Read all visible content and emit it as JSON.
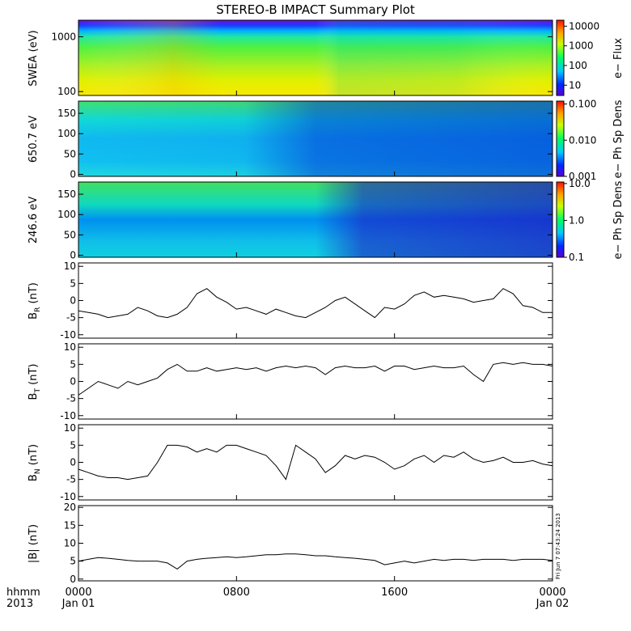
{
  "title": "STEREO-B IMPACT Summary Plot",
  "side_stamp": "Fri Jun  7 07:43:24 2013",
  "time_axis": {
    "row1_label": "hhmm",
    "row2_label": "2013",
    "ticks": [
      {
        "hour": 0,
        "label": "0000",
        "date": "Jan 01"
      },
      {
        "hour": 8,
        "label": "0800",
        "date": ""
      },
      {
        "hour": 16,
        "label": "1600",
        "date": ""
      },
      {
        "hour": 24,
        "label": "0000",
        "date": "Jan 02"
      }
    ]
  },
  "chart_data": [
    {
      "type": "heatmap",
      "id": "swea",
      "ylabel": "SWEA (eV)",
      "yscale": "log",
      "ylim": [
        85,
        2000
      ],
      "yticks": [
        {
          "v": 100,
          "label": "100"
        },
        {
          "v": 1000,
          "label": "1000"
        }
      ],
      "colorbar": {
        "label": "e− Flux",
        "scale": "log",
        "range": [
          3,
          20000
        ],
        "ticks": [
          {
            "v": 10,
            "label": "10"
          },
          {
            "v": 100,
            "label": "100"
          },
          {
            "v": 1000,
            "label": "1000"
          },
          {
            "v": 10000,
            "label": "10000"
          }
        ]
      }
    },
    {
      "type": "heatmap",
      "id": "pad650",
      "ylabel": "650.7 eV",
      "ylim": [
        -5,
        180
      ],
      "yticks": [
        {
          "v": 0,
          "label": "0"
        },
        {
          "v": 50,
          "label": "50"
        },
        {
          "v": 100,
          "label": "100"
        },
        {
          "v": 150,
          "label": "150"
        }
      ],
      "colorbar": {
        "label": "e− Ph Sp Dens",
        "scale": "log",
        "range": [
          0.001,
          0.12
        ],
        "ticks": [
          {
            "v": 0.001,
            "label": "0.001"
          },
          {
            "v": 0.01,
            "label": "0.010"
          },
          {
            "v": 0.1,
            "label": "0.100"
          }
        ]
      }
    },
    {
      "type": "heatmap",
      "id": "pad246",
      "ylabel": "246.6 eV",
      "ylim": [
        -5,
        180
      ],
      "yticks": [
        {
          "v": 0,
          "label": "0"
        },
        {
          "v": 50,
          "label": "50"
        },
        {
          "v": 100,
          "label": "100"
        },
        {
          "v": 150,
          "label": "150"
        }
      ],
      "colorbar": {
        "label": "e− Ph Sp Dens",
        "scale": "log",
        "range": [
          0.1,
          11
        ],
        "ticks": [
          {
            "v": 0.1,
            "label": "0.1"
          },
          {
            "v": 1,
            "label": "1.0"
          },
          {
            "v": 10,
            "label": "10.0"
          }
        ]
      }
    },
    {
      "type": "line",
      "id": "br",
      "ylabel_main": "B",
      "ylabel_sub": "R",
      "ylabel_unit": " (nT)",
      "ylim": [
        -11,
        11
      ],
      "yticks": [
        {
          "v": -10,
          "label": "-10"
        },
        {
          "v": -5,
          "label": "-5"
        },
        {
          "v": 0,
          "label": "0"
        },
        {
          "v": 5,
          "label": "5"
        },
        {
          "v": 10,
          "label": "10"
        }
      ],
      "x": [
        0,
        0.5,
        1,
        1.5,
        2,
        2.5,
        3,
        3.5,
        4,
        4.5,
        5,
        5.5,
        6,
        6.5,
        7,
        7.5,
        8,
        8.5,
        9,
        9.5,
        10,
        10.5,
        11,
        11.5,
        12,
        12.5,
        13,
        13.5,
        14,
        14.5,
        15,
        15.5,
        16,
        16.5,
        17,
        17.5,
        18,
        18.5,
        19,
        19.5,
        20,
        20.5,
        21,
        21.5,
        22,
        22.5,
        23,
        23.5,
        24
      ],
      "y": [
        -3,
        -3.5,
        -4,
        -5,
        -4.5,
        -4,
        -2,
        -3,
        -4.5,
        -5,
        -4,
        -2,
        2,
        3.5,
        1,
        -0.5,
        -2.5,
        -2,
        -3,
        -4,
        -2.5,
        -3.5,
        -4.5,
        -5,
        -3.5,
        -2,
        0,
        1,
        -1,
        -3,
        -5,
        -2,
        -2.5,
        -1,
        1.5,
        2.5,
        1,
        1.5,
        1,
        0.5,
        -0.5,
        0,
        0.5,
        3.5,
        2,
        -1.5,
        -2,
        -3.5,
        -3.5
      ]
    },
    {
      "type": "line",
      "id": "bt",
      "ylabel_main": "B",
      "ylabel_sub": "T",
      "ylabel_unit": " (nT)",
      "ylim": [
        -11,
        11
      ],
      "yticks": [
        {
          "v": -10,
          "label": "-10"
        },
        {
          "v": -5,
          "label": "-5"
        },
        {
          "v": 0,
          "label": "0"
        },
        {
          "v": 5,
          "label": "5"
        },
        {
          "v": 10,
          "label": "10"
        }
      ],
      "x": [
        0,
        0.5,
        1,
        1.5,
        2,
        2.5,
        3,
        3.5,
        4,
        4.5,
        5,
        5.5,
        6,
        6.5,
        7,
        7.5,
        8,
        8.5,
        9,
        9.5,
        10,
        10.5,
        11,
        11.5,
        12,
        12.5,
        13,
        13.5,
        14,
        14.5,
        15,
        15.5,
        16,
        16.5,
        17,
        17.5,
        18,
        18.5,
        19,
        19.5,
        20,
        20.5,
        21,
        21.5,
        22,
        22.5,
        23,
        23.5,
        24
      ],
      "y": [
        -4,
        -2,
        0,
        -1,
        -2,
        0,
        -1,
        0,
        1,
        3.5,
        5,
        3,
        3,
        4,
        3,
        3.5,
        4,
        3.5,
        4,
        3,
        4,
        4.5,
        4,
        4.5,
        4,
        2,
        4,
        4.5,
        4,
        4,
        4.5,
        3,
        4.5,
        4.5,
        3.5,
        4,
        4.5,
        4,
        4,
        4.5,
        2,
        0,
        5,
        5.5,
        5,
        5.5,
        5,
        5,
        4.5
      ]
    },
    {
      "type": "line",
      "id": "bn",
      "ylabel_main": "B",
      "ylabel_sub": "N",
      "ylabel_unit": " (nT)",
      "ylim": [
        -11,
        11
      ],
      "yticks": [
        {
          "v": -10,
          "label": "-10"
        },
        {
          "v": -5,
          "label": "-5"
        },
        {
          "v": 0,
          "label": "0"
        },
        {
          "v": 5,
          "label": "5"
        },
        {
          "v": 10,
          "label": "10"
        }
      ],
      "x": [
        0,
        0.5,
        1,
        1.5,
        2,
        2.5,
        3,
        3.5,
        4,
        4.5,
        5,
        5.5,
        6,
        6.5,
        7,
        7.5,
        8,
        8.5,
        9,
        9.5,
        10,
        10.5,
        11,
        11.5,
        12,
        12.5,
        13,
        13.5,
        14,
        14.5,
        15,
        15.5,
        16,
        16.5,
        17,
        17.5,
        18,
        18.5,
        19,
        19.5,
        20,
        20.5,
        21,
        21.5,
        22,
        22.5,
        23,
        23.5,
        24
      ],
      "y": [
        -2,
        -3,
        -4,
        -4.5,
        -4.5,
        -5,
        -4.5,
        -4,
        0,
        5,
        5,
        4.5,
        3,
        4,
        3,
        5,
        5,
        4,
        3,
        2,
        -1,
        -5,
        5,
        3,
        1,
        -3,
        -1,
        2,
        1,
        2,
        1.5,
        0,
        -2,
        -1,
        1,
        2,
        0,
        2,
        1.5,
        3,
        1,
        0,
        0.5,
        1.5,
        0,
        0,
        0.5,
        -0.5,
        -1
      ]
    },
    {
      "type": "line",
      "id": "bmag",
      "ylabel_main": "|B| (nT)",
      "ylim": [
        -0.5,
        20.5
      ],
      "yticks": [
        {
          "v": 0,
          "label": "0"
        },
        {
          "v": 5,
          "label": "5"
        },
        {
          "v": 10,
          "label": "10"
        },
        {
          "v": 15,
          "label": "15"
        },
        {
          "v": 20,
          "label": "20"
        }
      ],
      "x": [
        0,
        0.5,
        1,
        1.5,
        2,
        2.5,
        3,
        3.5,
        4,
        4.5,
        5,
        5.5,
        6,
        6.5,
        7,
        7.5,
        8,
        8.5,
        9,
        9.5,
        10,
        10.5,
        11,
        11.5,
        12,
        12.5,
        13,
        13.5,
        14,
        14.5,
        15,
        15.5,
        16,
        16.5,
        17,
        17.5,
        18,
        18.5,
        19,
        19.5,
        20,
        20.5,
        21,
        21.5,
        22,
        22.5,
        23,
        23.5,
        24
      ],
      "y": [
        5,
        5.5,
        6,
        5.8,
        5.5,
        5.2,
        5,
        5,
        5,
        4.5,
        2.8,
        5,
        5.5,
        5.8,
        6,
        6.2,
        6,
        6.2,
        6.5,
        6.8,
        6.8,
        7,
        7,
        6.8,
        6.5,
        6.5,
        6.2,
        6,
        5.8,
        5.5,
        5.2,
        4,
        4.5,
        5,
        4.5,
        5,
        5.5,
        5.2,
        5.5,
        5.5,
        5.2,
        5.5,
        5.5,
        5.5,
        5.2,
        5.5,
        5.5,
        5.5,
        5.2
      ]
    }
  ]
}
